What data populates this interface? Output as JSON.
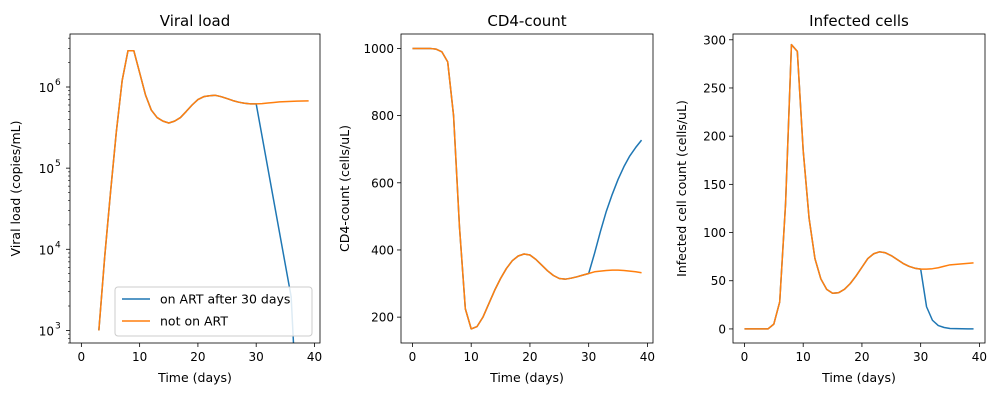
{
  "chart_data": [
    {
      "type": "line",
      "title": "Viral load",
      "xlabel": "Time (days)",
      "ylabel": "Viral load (copies/mL)",
      "yscale": "log",
      "xlim": [
        -1.95,
        40.95
      ],
      "ylim": [
        700,
        4500000
      ],
      "x_ticks": [
        0,
        10,
        20,
        30,
        40
      ],
      "x_tick_labels": [
        "0",
        "10",
        "20",
        "30",
        "40"
      ],
      "y_ticks": [
        1000,
        10000,
        100000,
        1000000
      ],
      "y_tick_labels": [
        "10",
        "10",
        "10",
        "10"
      ],
      "y_tick_exponents": [
        "3",
        "4",
        "5",
        "6"
      ],
      "legend": {
        "placement": "lower right",
        "entries": [
          "on ART after 30 days",
          "not on ART"
        ]
      },
      "series": [
        {
          "name": "on ART after 30 days",
          "color": "#1f77b4",
          "x": [
            3,
            4,
            5,
            6,
            7,
            8,
            9,
            10,
            11,
            12,
            13,
            14,
            15,
            16,
            17,
            18,
            19,
            20,
            21,
            22,
            23,
            24,
            25,
            26,
            27,
            28,
            29,
            30,
            36,
            36.4
          ],
          "y": [
            1000,
            8000,
            50000,
            280000,
            1200000,
            2800000,
            2800000,
            1500000,
            800000,
            520000,
            420000,
            380000,
            360000,
            380000,
            420000,
            500000,
            600000,
            700000,
            760000,
            780000,
            790000,
            760000,
            720000,
            680000,
            650000,
            630000,
            620000,
            620000,
            2600,
            700
          ]
        },
        {
          "name": "not on ART",
          "color": "#ff7f0e",
          "x": [
            3,
            4,
            5,
            6,
            7,
            8,
            9,
            10,
            11,
            12,
            13,
            14,
            15,
            16,
            17,
            18,
            19,
            20,
            21,
            22,
            23,
            24,
            25,
            26,
            27,
            28,
            29,
            30,
            31,
            32,
            33,
            34,
            35,
            36,
            37,
            38,
            39
          ],
          "y": [
            1000,
            8000,
            50000,
            280000,
            1200000,
            2800000,
            2800000,
            1500000,
            800000,
            520000,
            420000,
            380000,
            360000,
            380000,
            420000,
            500000,
            600000,
            700000,
            760000,
            780000,
            790000,
            760000,
            720000,
            680000,
            650000,
            630000,
            620000,
            620000,
            625000,
            635000,
            645000,
            655000,
            660000,
            665000,
            670000,
            672000,
            675000
          ]
        }
      ]
    },
    {
      "type": "line",
      "title": "CD4-count",
      "xlabel": "Time (days)",
      "ylabel": "CD4-count (cells/uL)",
      "xlim": [
        -1.95,
        40.95
      ],
      "ylim": [
        123,
        1043
      ],
      "x_ticks": [
        0,
        10,
        20,
        30,
        40
      ],
      "x_tick_labels": [
        "0",
        "10",
        "20",
        "30",
        "40"
      ],
      "y_ticks": [
        200,
        400,
        600,
        800,
        1000
      ],
      "y_tick_labels": [
        "200",
        "400",
        "600",
        "800",
        "1000"
      ],
      "series": [
        {
          "name": "on ART after 30 days",
          "color": "#1f77b4",
          "x": [
            0,
            1,
            2,
            3,
            4,
            5,
            6,
            7,
            8,
            9,
            10,
            11,
            12,
            13,
            14,
            15,
            16,
            17,
            18,
            19,
            20,
            21,
            22,
            23,
            24,
            25,
            26,
            27,
            28,
            29,
            30,
            31,
            32,
            33,
            34,
            35,
            36,
            37,
            38,
            39
          ],
          "y": [
            1000,
            1000,
            1000,
            1000,
            998,
            990,
            960,
            800,
            470,
            225,
            165,
            172,
            200,
            240,
            280,
            315,
            345,
            368,
            382,
            388,
            385,
            372,
            355,
            338,
            324,
            315,
            313,
            316,
            320,
            325,
            330,
            390,
            455,
            515,
            565,
            610,
            648,
            680,
            705,
            727
          ]
        },
        {
          "name": "not on ART",
          "color": "#ff7f0e",
          "x": [
            0,
            1,
            2,
            3,
            4,
            5,
            6,
            7,
            8,
            9,
            10,
            11,
            12,
            13,
            14,
            15,
            16,
            17,
            18,
            19,
            20,
            21,
            22,
            23,
            24,
            25,
            26,
            27,
            28,
            29,
            30,
            31,
            32,
            33,
            34,
            35,
            36,
            37,
            38,
            39
          ],
          "y": [
            1000,
            1000,
            1000,
            1000,
            998,
            990,
            960,
            800,
            470,
            225,
            165,
            172,
            200,
            240,
            280,
            315,
            345,
            368,
            382,
            388,
            385,
            372,
            355,
            338,
            324,
            315,
            313,
            316,
            320,
            325,
            330,
            335,
            337,
            339,
            340,
            340,
            339,
            337,
            335,
            332
          ]
        }
      ]
    },
    {
      "type": "line",
      "title": "Infected cells",
      "xlabel": "Time (days)",
      "ylabel": "Infected cell count (cells/uL)",
      "xlim": [
        -1.95,
        40.95
      ],
      "ylim": [
        -14.6,
        306
      ],
      "x_ticks": [
        0,
        10,
        20,
        30,
        40
      ],
      "x_tick_labels": [
        "0",
        "10",
        "20",
        "30",
        "40"
      ],
      "y_ticks": [
        0,
        50,
        100,
        150,
        200,
        250,
        300
      ],
      "y_tick_labels": [
        "0",
        "50",
        "100",
        "150",
        "200",
        "250",
        "300"
      ],
      "series": [
        {
          "name": "on ART after 30 days",
          "color": "#1f77b4",
          "x": [
            0,
            1,
            2,
            3,
            4,
            5,
            6,
            7,
            8,
            9,
            10,
            11,
            12,
            13,
            14,
            15,
            16,
            17,
            18,
            19,
            20,
            21,
            22,
            23,
            24,
            25,
            26,
            27,
            28,
            29,
            30,
            31,
            32,
            33,
            34,
            35,
            36,
            37,
            38,
            39
          ],
          "y": [
            0,
            0,
            0,
            0,
            0,
            5,
            28,
            130,
            295,
            288,
            185,
            115,
            73,
            52,
            41,
            37,
            37.5,
            41,
            47,
            55,
            64,
            73,
            78,
            80,
            79,
            76,
            72,
            68,
            65,
            63,
            62,
            23,
            9,
            3.5,
            1.5,
            0.5,
            0.3,
            0.2,
            0.1,
            0.1
          ]
        },
        {
          "name": "not on ART",
          "color": "#ff7f0e",
          "x": [
            0,
            1,
            2,
            3,
            4,
            5,
            6,
            7,
            8,
            9,
            10,
            11,
            12,
            13,
            14,
            15,
            16,
            17,
            18,
            19,
            20,
            21,
            22,
            23,
            24,
            25,
            26,
            27,
            28,
            29,
            30,
            31,
            32,
            33,
            34,
            35,
            36,
            37,
            38,
            39
          ],
          "y": [
            0,
            0,
            0,
            0,
            0,
            5,
            28,
            130,
            295,
            288,
            185,
            115,
            73,
            52,
            41,
            37,
            37.5,
            41,
            47,
            55,
            64,
            73,
            78,
            80,
            79,
            76,
            72,
            68,
            65,
            63,
            62,
            62,
            62.5,
            63.5,
            65,
            66.5,
            67,
            67.5,
            68,
            68.5
          ]
        }
      ]
    }
  ]
}
